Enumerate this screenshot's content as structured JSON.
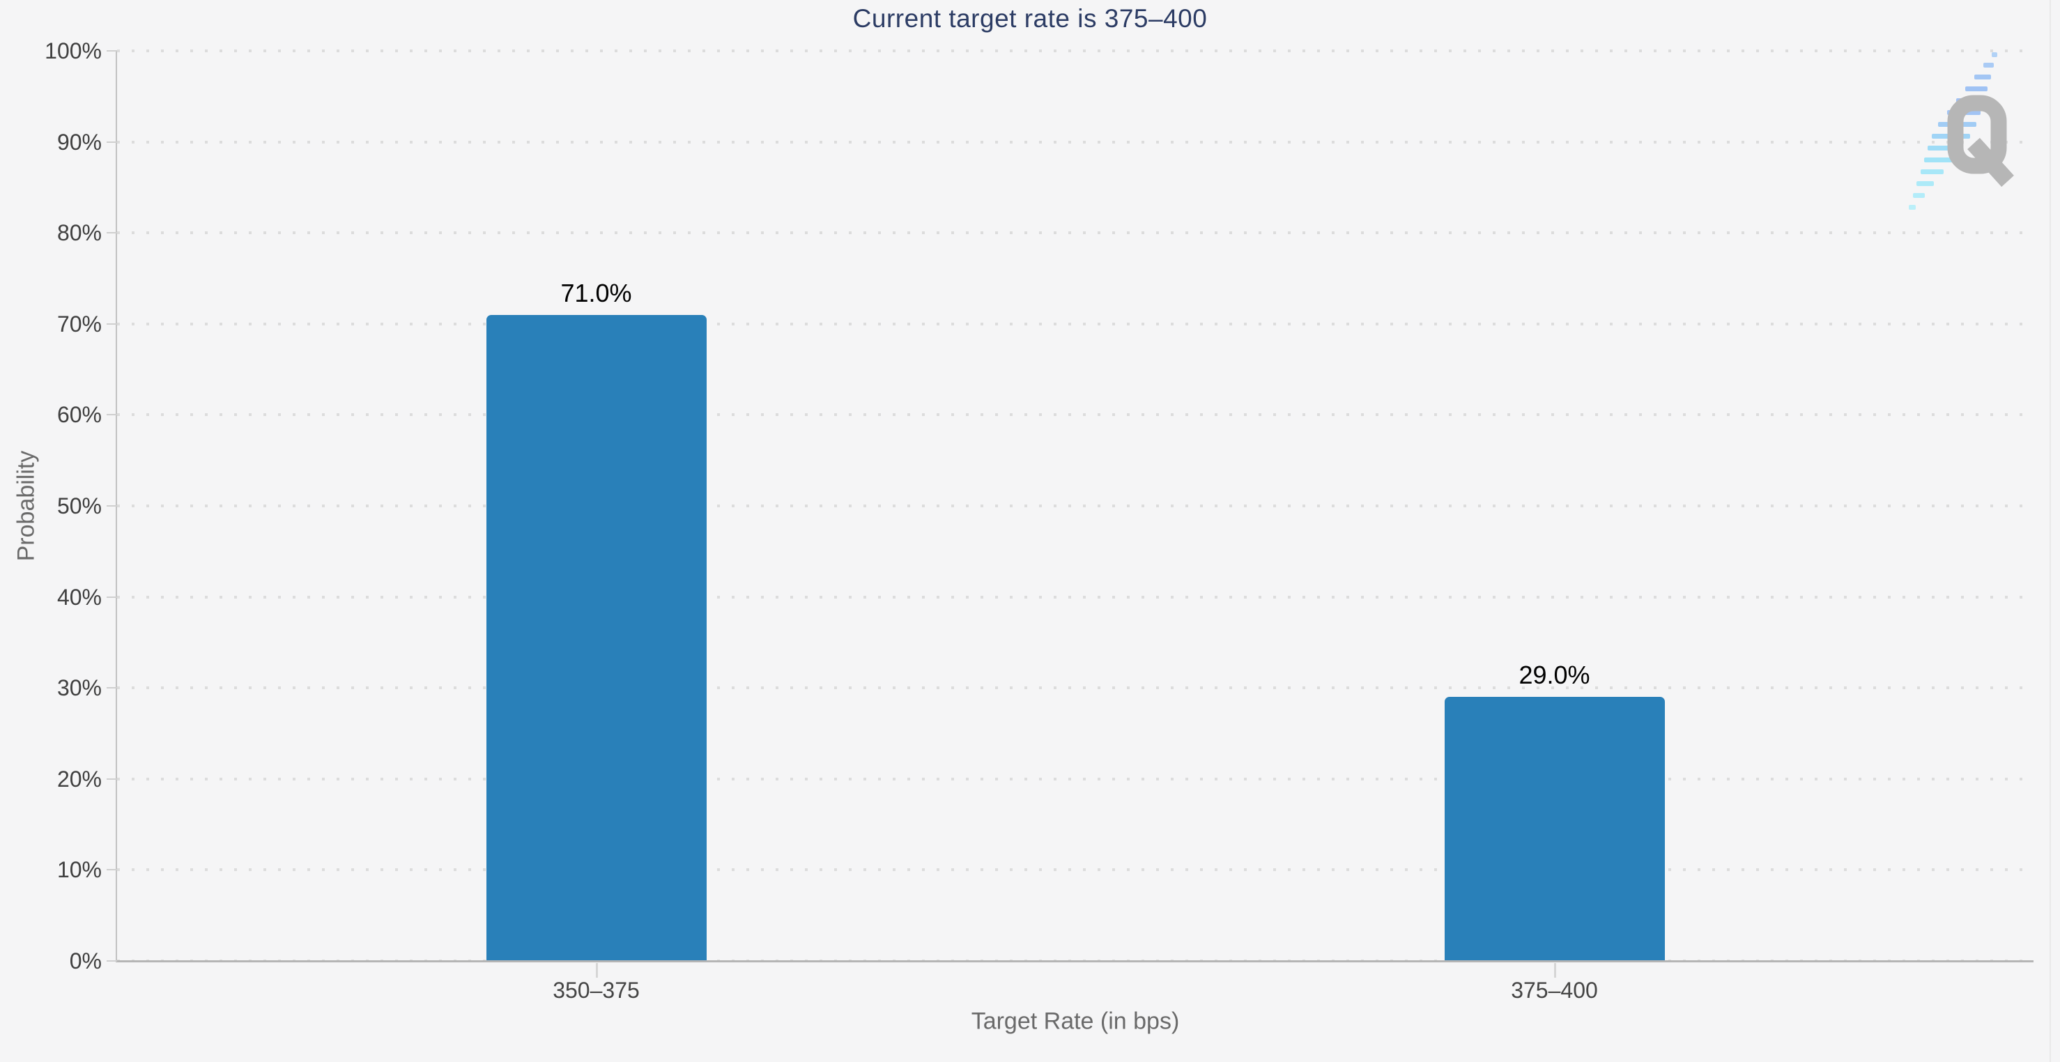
{
  "chart_data": {
    "type": "bar",
    "title": "Current target rate is 375–400",
    "xlabel": "Target Rate (in bps)",
    "ylabel": "Probability",
    "categories": [
      "350–375",
      "375–400"
    ],
    "values": [
      71.0,
      29.0
    ],
    "bar_labels": [
      "71.0%",
      "29.0%"
    ],
    "ylim": [
      0,
      100
    ],
    "ytick_step": 10,
    "ytick_labels": [
      "0%",
      "10%",
      "20%",
      "30%",
      "40%",
      "50%",
      "60%",
      "70%",
      "80%",
      "90%",
      "100%"
    ],
    "grid": "horizontal dotted",
    "legend": "none",
    "bar_color": "#2980b9"
  },
  "watermark": {
    "logo": "Q-logo"
  },
  "colors": {
    "background": "#f5f5f6",
    "title": "#2c3c64",
    "bar": "#2980b9",
    "tick_label": "#404040",
    "axis_title": "#6a6a6a",
    "gridline": "#dcdcdc",
    "axis_line": "#b5b5b5",
    "bar_label": "#000000",
    "logo_gray": "#b6b6b6",
    "logo_cyan": "#a5e6f7",
    "logo_blue": "#9fc2f4"
  }
}
